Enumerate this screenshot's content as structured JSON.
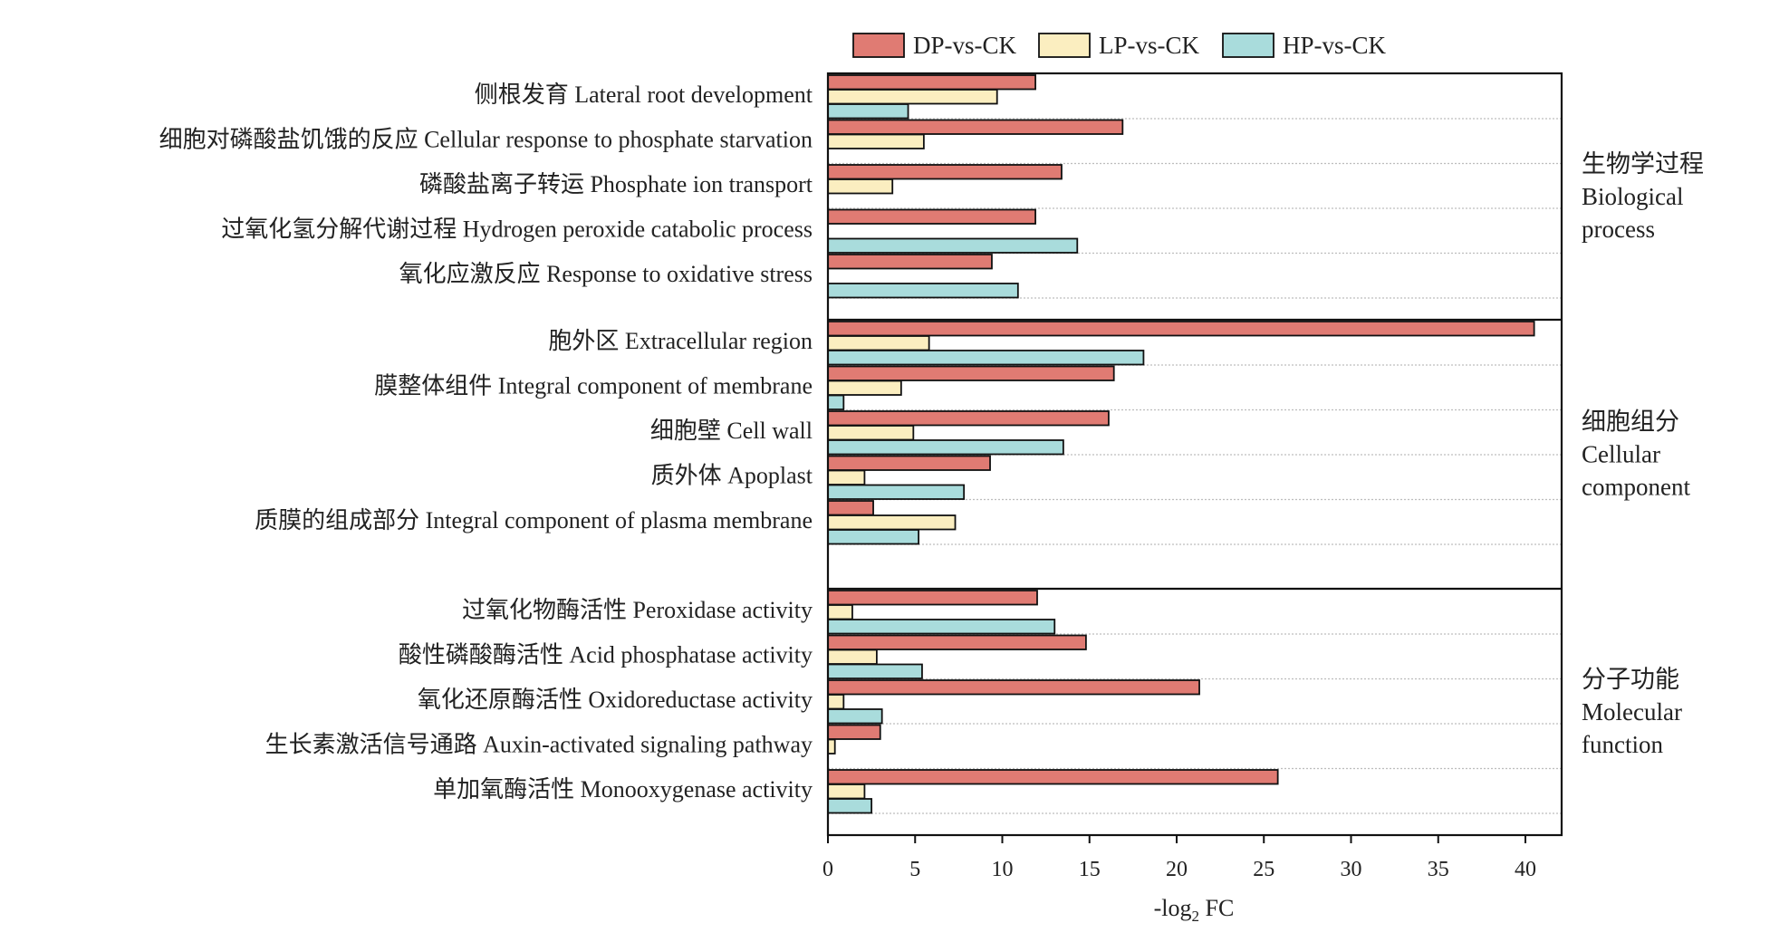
{
  "chart_data": {
    "type": "bar",
    "orientation": "horizontal",
    "xlabel": "-log",
    "xlabel_subscript": "2",
    "xlabel_suffix": " FC",
    "xlim": [
      0,
      42
    ],
    "xticks": [
      0,
      5,
      10,
      15,
      20,
      25,
      30,
      35,
      40
    ],
    "grid": "horizontal",
    "legend": "top",
    "series": [
      {
        "name": "DP-vs-CK",
        "color": "#e07b73"
      },
      {
        "name": "LP-vs-CK",
        "color": "#fbeec0"
      },
      {
        "name": "HP-vs-CK",
        "color": "#a9dcdc"
      }
    ],
    "groups": [
      {
        "label_lines": [
          "生物学过程",
          "Biological",
          "process"
        ],
        "categories": [
          {
            "label": "侧根发育 Lateral root development",
            "values": [
              11.9,
              9.7,
              4.6
            ]
          },
          {
            "label": "细胞对磷酸盐饥饿的反应 Cellular response to phosphate starvation",
            "values": [
              16.9,
              5.5,
              0
            ]
          },
          {
            "label": "磷酸盐离子转运 Phosphate ion transport",
            "values": [
              13.4,
              3.7,
              0
            ]
          },
          {
            "label": "过氧化氢分解代谢过程 Hydrogen peroxide catabolic process",
            "values": [
              11.9,
              0,
              14.3
            ]
          },
          {
            "label": "氧化应激反应 Response to oxidative stress",
            "values": [
              9.4,
              0,
              10.9
            ]
          }
        ]
      },
      {
        "label_lines": [
          "细胞组分",
          "Cellular",
          "component"
        ],
        "categories": [
          {
            "label": "胞外区 Extracellular region",
            "values": [
              40.5,
              5.8,
              18.1
            ]
          },
          {
            "label": "膜整体组件 Integral component of membrane",
            "values": [
              16.4,
              4.2,
              0.9
            ]
          },
          {
            "label": "细胞壁 Cell wall",
            "values": [
              16.1,
              4.9,
              13.5
            ]
          },
          {
            "label": "质外体 Apoplast",
            "values": [
              9.3,
              2.1,
              7.8
            ]
          },
          {
            "label": "质膜的组成部分 Integral component of plasma membrane",
            "values": [
              2.6,
              7.3,
              5.2
            ]
          }
        ]
      },
      {
        "label_lines": [
          "分子功能",
          "Molecular",
          "function"
        ],
        "categories": [
          {
            "label": "过氧化物酶活性 Peroxidase activity",
            "values": [
              12.0,
              1.4,
              13.0
            ]
          },
          {
            "label": "酸性磷酸酶活性 Acid phosphatase activity",
            "values": [
              14.8,
              2.8,
              5.4
            ]
          },
          {
            "label": "氧化还原酶活性 Oxidoreductase activity",
            "values": [
              21.3,
              0.9,
              3.1
            ]
          },
          {
            "label": "生长素激活信号通路 Auxin-activated signaling pathway",
            "values": [
              3.0,
              0.4,
              0
            ]
          },
          {
            "label": "单加氧酶活性 Monooxygenase activity",
            "values": [
              25.8,
              2.1,
              2.5
            ]
          }
        ]
      }
    ]
  }
}
